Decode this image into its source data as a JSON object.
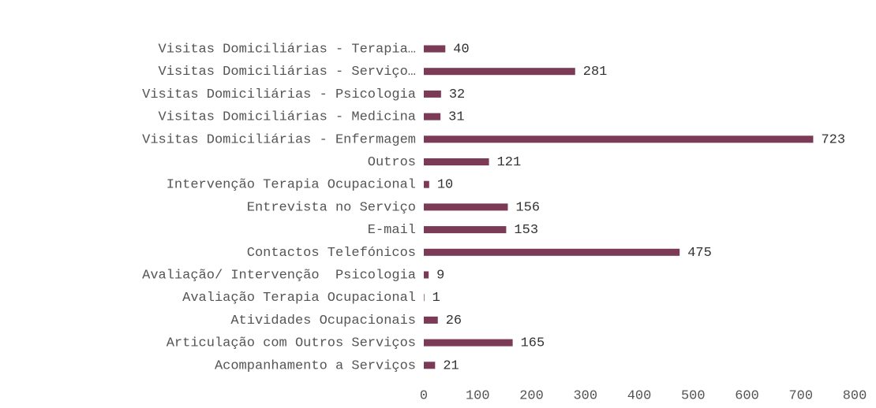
{
  "chart_data": {
    "type": "bar",
    "orientation": "horizontal",
    "categories": [
      "Visitas Domiciliárias - Terapia…",
      "Visitas Domiciliárias - Serviço…",
      "Visitas Domiciliárias - Psicologia",
      "Visitas Domiciliárias - Medicina",
      "Visitas Domiciliárias - Enfermagem",
      "Outros",
      "Intervenção Terapia Ocupacional",
      "Entrevista no Serviço",
      "E-mail",
      "Contactos Telefónicos",
      "Avaliação/ Intervenção  Psicologia",
      "Avaliação Terapia Ocupacional",
      "Atividades Ocupacionais",
      "Articulação com Outros Serviços",
      "Acompanhamento a Serviços"
    ],
    "values": [
      40,
      281,
      32,
      31,
      723,
      121,
      10,
      156,
      153,
      475,
      9,
      1,
      26,
      165,
      21
    ],
    "color": "#7b3a55",
    "xlim": [
      0,
      800
    ],
    "xticks": [
      0,
      100,
      200,
      300,
      400,
      500,
      600,
      700,
      800
    ],
    "grid": false
  }
}
